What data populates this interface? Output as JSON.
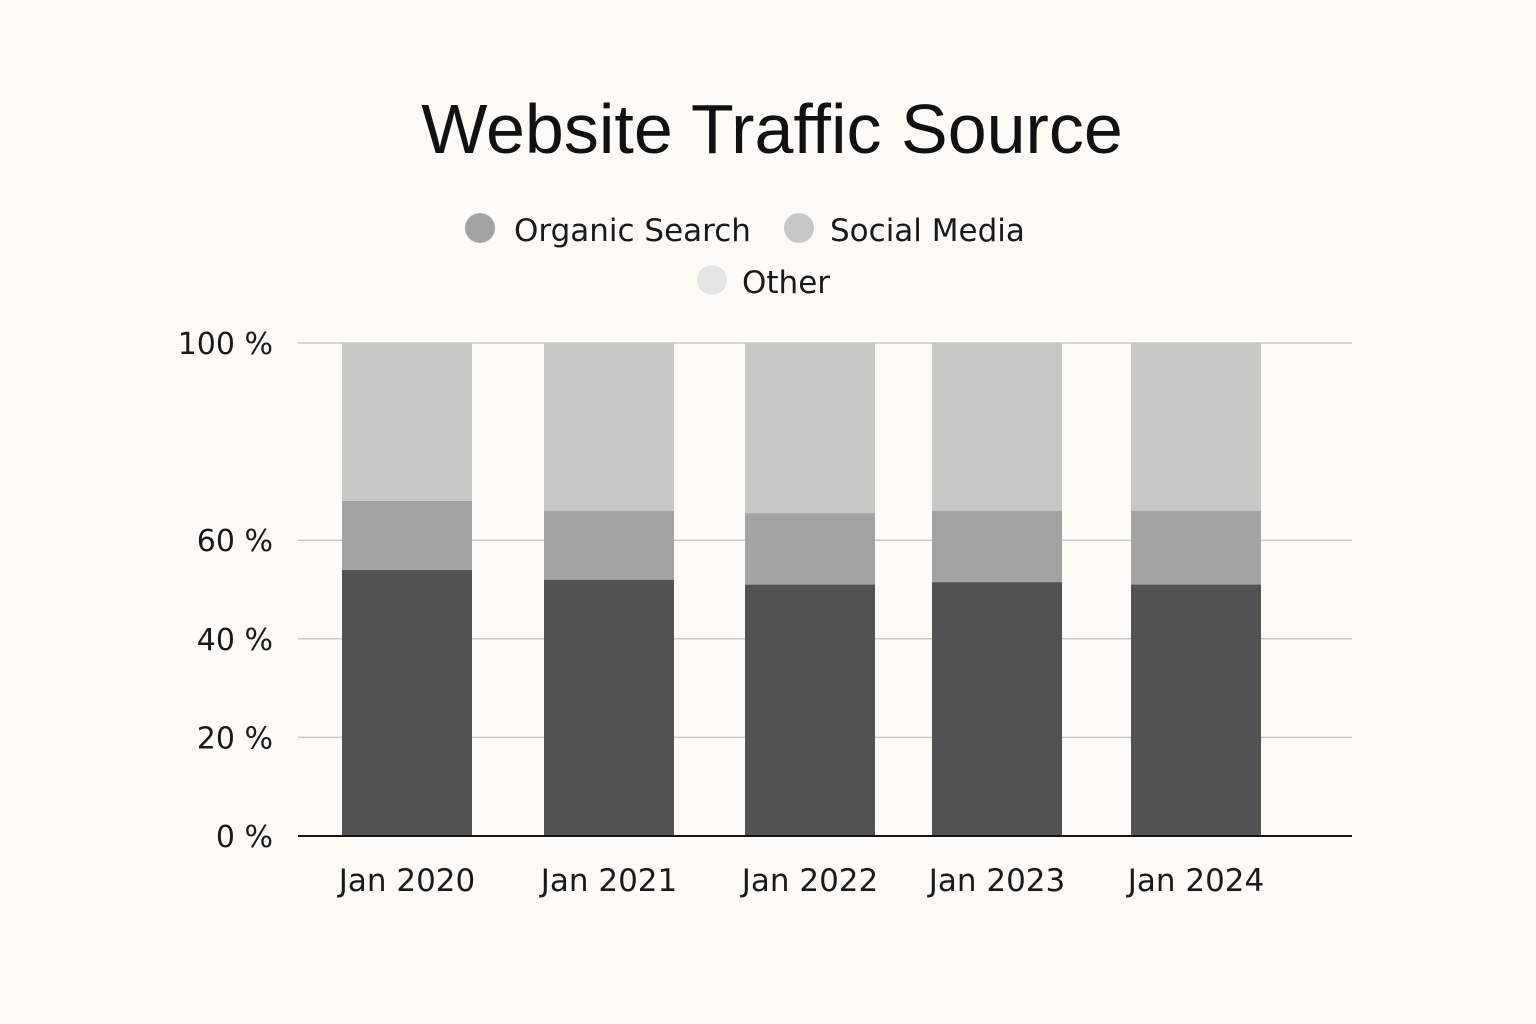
{
  "chart_data": {
    "type": "bar",
    "stacked": true,
    "title": "Website Traffic Source",
    "xlabel": "",
    "ylabel": "",
    "categories": [
      "Jan 2020",
      "Jan 2021",
      "Jan 2022",
      "Jan 2023",
      "Jan 2024"
    ],
    "series": [
      {
        "name": "Organic Search",
        "values": [
          54,
          52,
          51,
          51.5,
          51
        ],
        "color": "#525252"
      },
      {
        "name": "Social Media",
        "values": [
          14,
          14,
          14.5,
          14.5,
          15
        ],
        "color": "#a3a3a1"
      },
      {
        "name": "Other",
        "values": [
          32,
          34,
          34.5,
          34,
          34
        ],
        "color": "#c8c8c4"
      }
    ],
    "legend": [
      {
        "label": "Organic Search",
        "swatch_color": "#a3a3a3"
      },
      {
        "label": "Social Media",
        "swatch_color": "#c8c8c6"
      },
      {
        "label": "Other",
        "swatch_color": "#e4e4e2"
      }
    ],
    "legend_position": "top-center",
    "ylim": [
      0,
      100
    ],
    "yticks": [
      0,
      20,
      40,
      60,
      100
    ],
    "ytick_labels": [
      "0 %",
      "20 %",
      "40 %",
      "60 %",
      "100 %"
    ],
    "grid": true
  }
}
